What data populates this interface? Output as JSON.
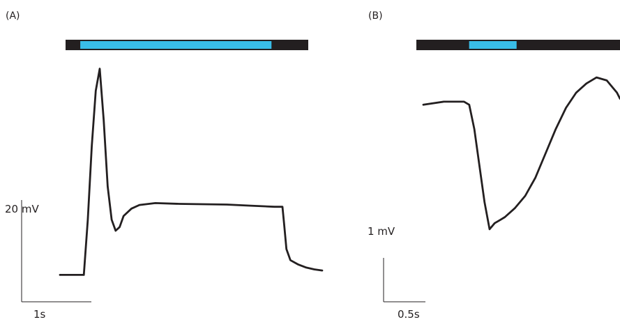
{
  "chart_data": [
    {
      "type": "line",
      "panel_label": "(A)",
      "scale_bar": {
        "y_label": "20 mV",
        "x_label": "1s",
        "y_units_per_bar": 20,
        "x_units_per_bar": 1
      },
      "stimulus": {
        "bar_color": "#231f20",
        "stim_color": "#39bde8",
        "total_s": [
          0,
          3.3
        ],
        "on_s": [
          0.2,
          2.8
        ]
      },
      "xlim": [
        0,
        3.3
      ],
      "ylim": [
        -2,
        58
      ],
      "series": [
        {
          "color": "#231f20",
          "x": [
            0,
            0.3,
            0.35,
            0.4,
            0.45,
            0.5,
            0.55,
            0.6,
            0.65,
            0.7,
            0.75,
            0.8,
            0.9,
            1.0,
            1.2,
            1.5,
            1.8,
            2.1,
            2.4,
            2.7,
            2.8,
            2.82,
            2.85,
            2.9,
            3.0,
            3.1,
            3.2,
            3.3
          ],
          "y": [
            0,
            0,
            15,
            35,
            50,
            56,
            42,
            24,
            15,
            12,
            13,
            16,
            18,
            19,
            19.5,
            19.3,
            19.2,
            19.1,
            18.8,
            18.5,
            18.5,
            14,
            7,
            4,
            2.8,
            2.0,
            1.5,
            1.2
          ]
        }
      ]
    },
    {
      "type": "line",
      "panel_label": "(B)",
      "scale_bar": {
        "y_label": "1 mV",
        "x_label": "0.5s",
        "y_units_per_bar": 1,
        "x_units_per_bar": 0.5
      },
      "stimulus": {
        "bar_color": "#231f20",
        "stim_color": "#39bde8",
        "total_s": [
          0,
          1.93
        ],
        "on_s": [
          0.5,
          0.95
        ]
      },
      "xlim": [
        0,
        1.93
      ],
      "ylim": [
        -2.2,
        0.6
      ],
      "series": [
        {
          "color": "#231f20",
          "x": [
            0,
            0.2,
            0.4,
            0.45,
            0.5,
            0.55,
            0.6,
            0.65,
            0.7,
            0.75,
            0.8,
            0.9,
            1.0,
            1.1,
            1.2,
            1.3,
            1.4,
            1.5,
            1.6,
            1.7,
            1.8,
            1.9,
            1.93
          ],
          "y": [
            0,
            0.05,
            0.05,
            0.0,
            -0.4,
            -1.0,
            -1.6,
            -2.05,
            -1.95,
            -1.9,
            -1.85,
            -1.7,
            -1.5,
            -1.2,
            -0.8,
            -0.4,
            -0.05,
            0.2,
            0.35,
            0.45,
            0.4,
            0.2,
            0.1
          ]
        }
      ]
    }
  ]
}
